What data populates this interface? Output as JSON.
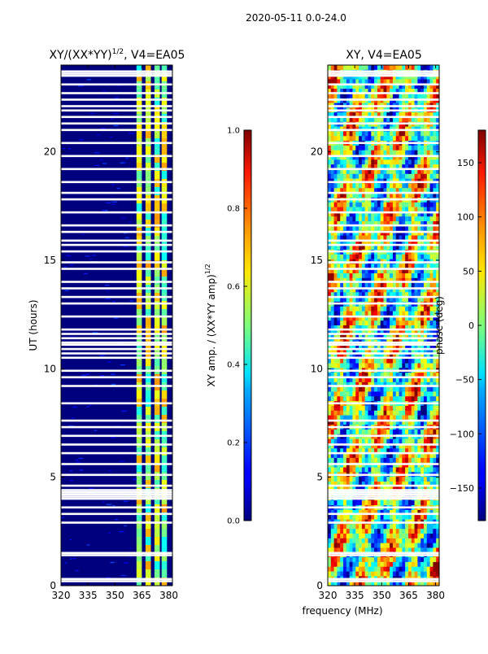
{
  "figure_title": "2020-05-11 0.0-24.0",
  "shared_xlabel": "frequency (MHz)",
  "chart_data": [
    {
      "type": "heatmap",
      "title_main": "XY/(XX*YY)",
      "title_sup": "1/2",
      "title_tail": ", V4=EA05",
      "xlabel": "",
      "ylabel": "UT (hours)",
      "xlim": [
        320,
        382
      ],
      "ylim": [
        0,
        24
      ],
      "xticks": [
        320,
        335,
        350,
        365,
        380
      ],
      "yticks": [
        0,
        5,
        10,
        15,
        20
      ],
      "colorbar": {
        "label_main": "XY amp. / (XX*YY amp)",
        "label_sup": "1/2",
        "range": [
          0.0,
          1.0
        ],
        "ticks": [
          "0.0",
          "0.2",
          "0.4",
          "0.6",
          "0.8",
          "1.0"
        ],
        "colormap": "jet"
      },
      "feature_bands_mhz": [
        362,
        365,
        367,
        370,
        372,
        375,
        376,
        379
      ]
    },
    {
      "type": "heatmap",
      "title": "XY, V4=EA05",
      "xlabel": "",
      "ylabel": "",
      "xlim": [
        320,
        382
      ],
      "ylim": [
        0,
        24
      ],
      "xticks": [
        320,
        335,
        350,
        365,
        380
      ],
      "yticks": [
        0,
        5,
        10,
        15,
        20
      ],
      "colorbar": {
        "label": "phase (deg)",
        "range": [
          -180,
          180
        ],
        "ticks": [
          "150",
          "100",
          "50",
          "0",
          "−50",
          "−100",
          "−150"
        ],
        "tick_values": [
          150,
          100,
          50,
          0,
          -50,
          -100,
          -150
        ],
        "colormap": "jet"
      }
    }
  ],
  "flagged_ut_hours": [
    0.2,
    0.3,
    1.4,
    1.5,
    2.9,
    3.3,
    3.6,
    4.0,
    4.1,
    4.2,
    4.3,
    4.4,
    4.6,
    5.1,
    5.6,
    6.1,
    6.5,
    6.9,
    7.3,
    7.6,
    8.4,
    9.2,
    9.6,
    9.9,
    10.5,
    10.7,
    10.9,
    11.1,
    11.2,
    11.4,
    11.6,
    11.8,
    12.4,
    13.0,
    13.3,
    13.7,
    14.0,
    14.6,
    14.9,
    15.4,
    15.7,
    15.9,
    16.3,
    16.6,
    17.2,
    17.8,
    18.1,
    18.6,
    19.2,
    19.8,
    20.4,
    21.0,
    21.3,
    21.6,
    21.9,
    22.1,
    22.4,
    22.7,
    23.1,
    23.5,
    23.6,
    23.7
  ]
}
